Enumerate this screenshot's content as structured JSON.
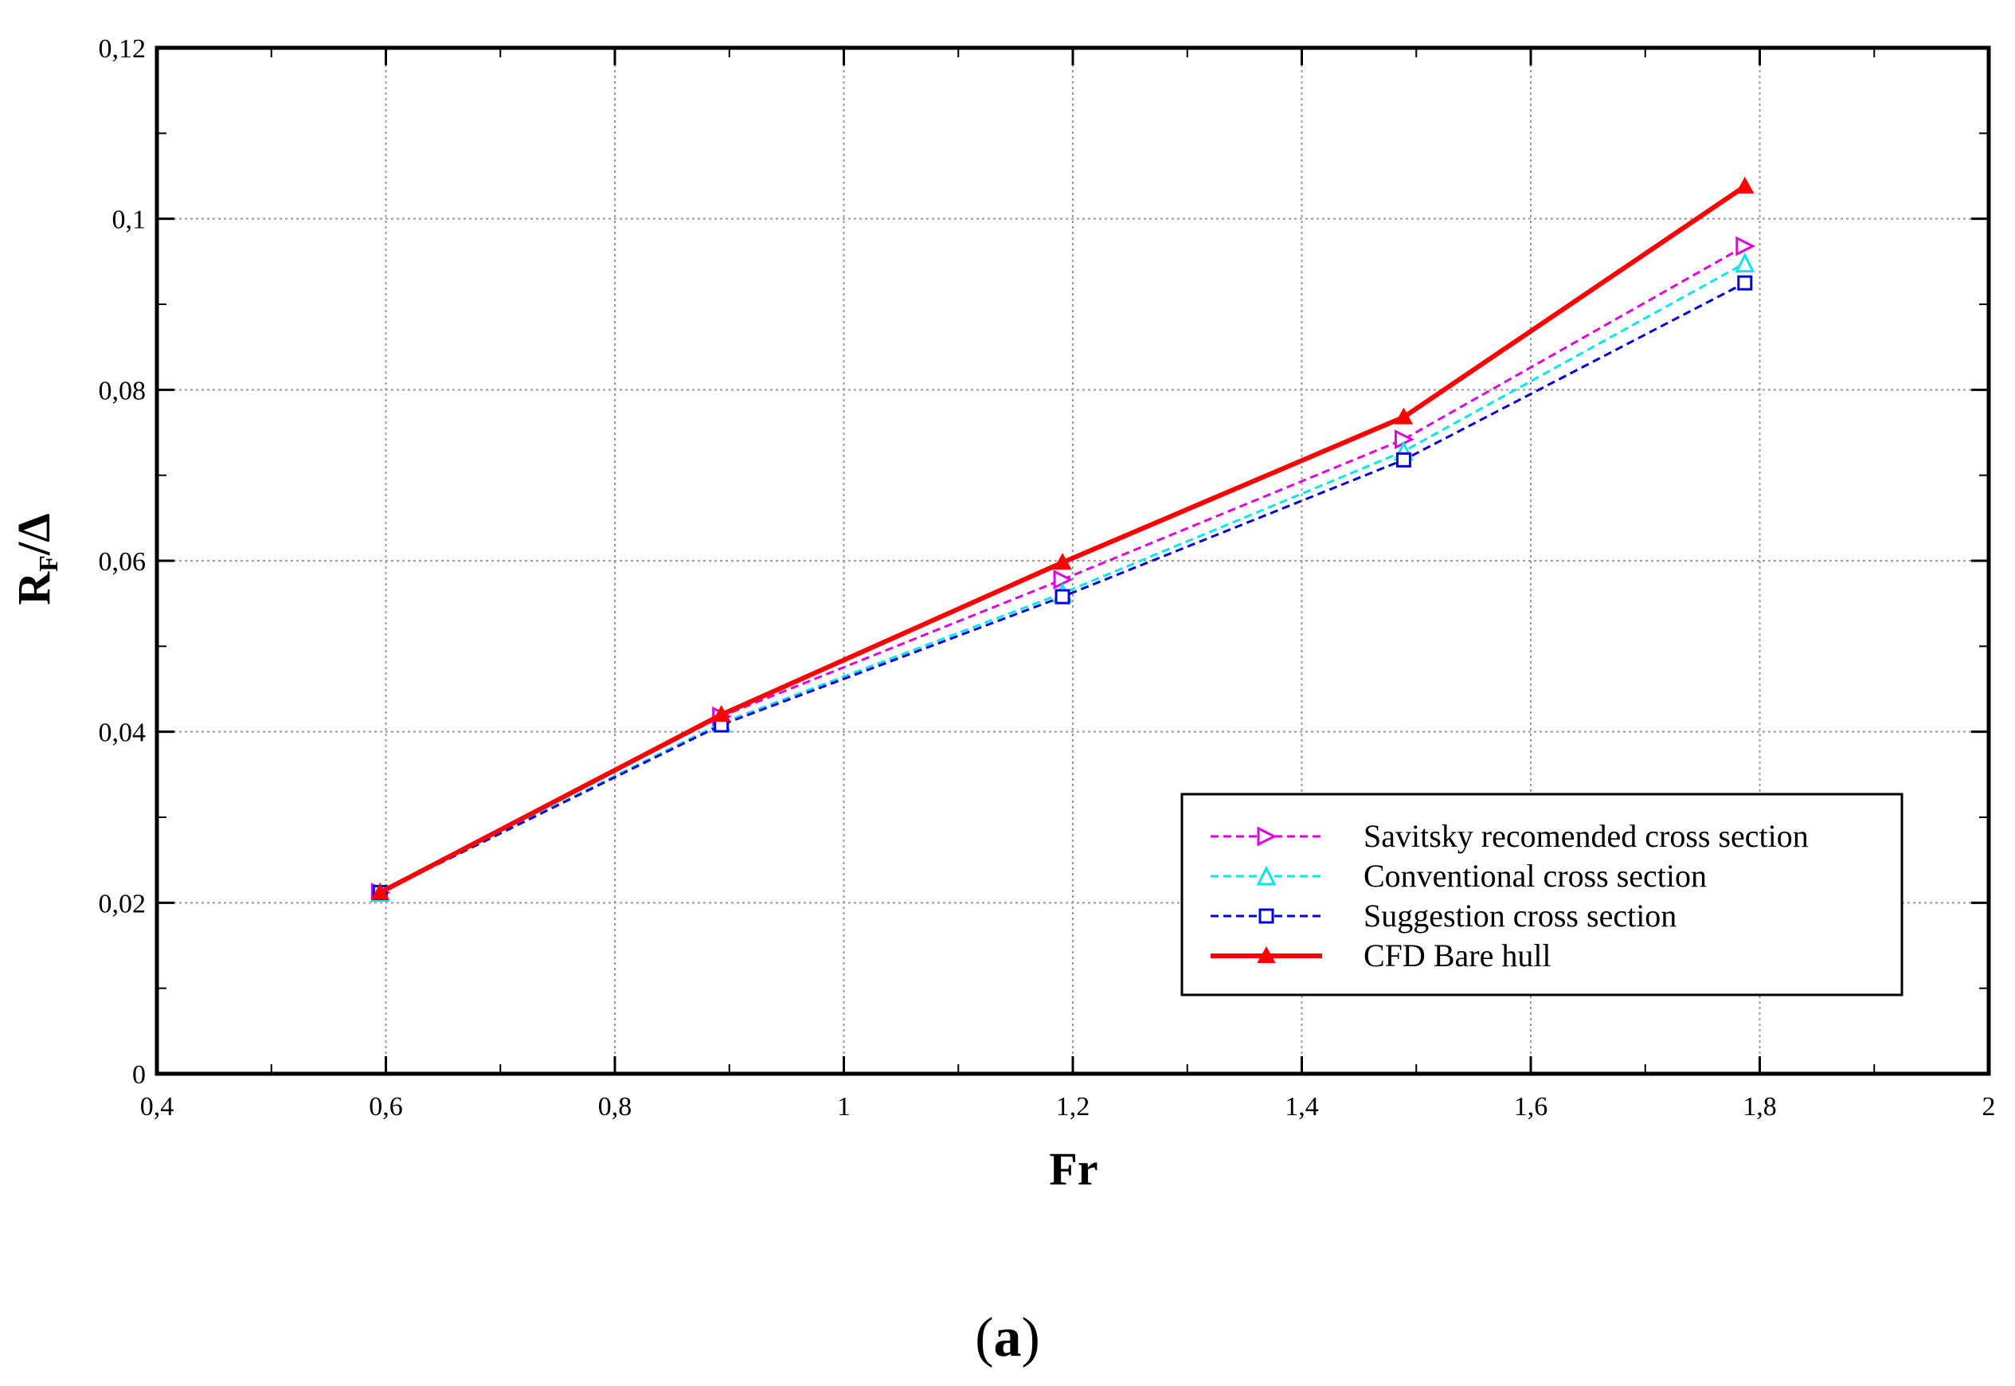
{
  "caption": {
    "open": "(",
    "label": "a",
    "close": ")"
  },
  "chart_data": {
    "type": "line",
    "title": "",
    "xlabel": "Fr",
    "ylabel": {
      "main": "R",
      "sub": "F",
      "rest": "/Δ"
    },
    "xlim": [
      0.4,
      2
    ],
    "ylim": [
      0,
      0.12
    ],
    "x_major_ticks": [
      0.4,
      0.6,
      0.8,
      1,
      1.2,
      1.4,
      1.6,
      1.8,
      2
    ],
    "x_tick_labels": [
      "0,4",
      "0,6",
      "0,8",
      "1",
      "1,2",
      "1,4",
      "1,6",
      "1,8",
      "2"
    ],
    "y_major_ticks": [
      0,
      0.02,
      0.04,
      0.06,
      0.08,
      0.1,
      0.12
    ],
    "y_tick_labels": [
      "0",
      "0,02",
      "0,04",
      "0,06",
      "0,08",
      "0,1",
      "0,12"
    ],
    "grid": true,
    "legend_position": "bottom-right",
    "x": [
      0.595,
      0.893,
      1.191,
      1.489,
      1.787
    ],
    "series": [
      {
        "name": "Savitsky recomended cross section",
        "values": [
          0.0212,
          0.0418,
          0.0578,
          0.0742,
          0.0968
        ],
        "color": "#e000e0",
        "dash": "dashed",
        "marker": "triangle-right-open"
      },
      {
        "name": "Conventional cross section",
        "values": [
          0.0212,
          0.041,
          0.0562,
          0.0728,
          0.0948
        ],
        "color": "#00e8e8",
        "dash": "dashed",
        "marker": "triangle-up-open"
      },
      {
        "name": "Suggestion cross section",
        "values": [
          0.0212,
          0.0408,
          0.0558,
          0.0718,
          0.0925
        ],
        "color": "#0000e0",
        "dash": "dashed",
        "marker": "square-open"
      },
      {
        "name": "CFD Bare hull",
        "values": [
          0.0212,
          0.042,
          0.0598,
          0.0768,
          0.1038
        ],
        "color": "#ff0000",
        "dash": "solid",
        "marker": "triangle-up-filled"
      }
    ]
  }
}
